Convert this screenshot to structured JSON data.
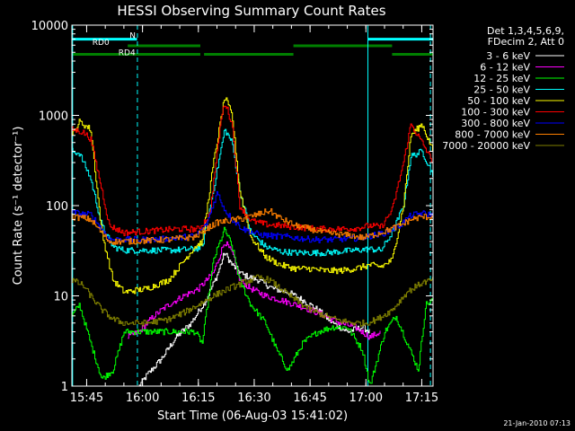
{
  "chart_data": {
    "type": "line",
    "title": "HESSI Observing Summary Count Rates",
    "xlabel": "Start Time (06-Aug-03 15:41:02)",
    "ylabel": "Count Rate (s⁻¹ detector⁻¹)",
    "footer": "21-Jan-2010 07:13",
    "yscale": "log",
    "ylim": [
      1,
      10000
    ],
    "xlim_minutes": [
      0,
      97
    ],
    "xtick_labels": [
      {
        "label": "15:45",
        "minute": 3.97
      },
      {
        "label": "16:00",
        "minute": 18.97
      },
      {
        "label": "16:15",
        "minute": 33.97
      },
      {
        "label": "16:30",
        "minute": 48.97
      },
      {
        "label": "16:45",
        "minute": 63.97
      },
      {
        "label": "17:00",
        "minute": 78.97
      },
      {
        "label": "17:15",
        "minute": 93.97
      }
    ],
    "ytick_labels": [
      {
        "label": "1",
        "value": 1
      },
      {
        "label": "10",
        "value": 10
      },
      {
        "label": "100",
        "value": 100
      },
      {
        "label": "1000",
        "value": 1000
      },
      {
        "label": "10000",
        "value": 10000
      }
    ],
    "legend_header": [
      "Det 1,3,4,5,6,9,",
      "FDecim 2, Att 0"
    ],
    "legend_placement": "right",
    "flags": [
      {
        "label": "N",
        "color": "#00ffff",
        "y_value": 7000,
        "segments": [
          [
            0,
            17.5
          ],
          [
            79.5,
            97
          ]
        ]
      },
      {
        "label": "RD0",
        "color": "#008000",
        "y_value": 5900,
        "segments": [
          [
            15,
            34.5
          ],
          [
            59.5,
            86
          ]
        ]
      },
      {
        "label": "RD4",
        "color": "#008000",
        "y_value": 4750,
        "segments": [
          [
            0,
            34.5
          ],
          [
            35.5,
            59.5
          ],
          [
            86,
            97
          ]
        ]
      }
    ],
    "vlines": [
      {
        "color": "#00ffff",
        "style": "solid",
        "minute": 0.2
      },
      {
        "color": "#00ffff",
        "style": "dashed",
        "minute": 17.6
      },
      {
        "color": "#00ffff",
        "style": "solid",
        "minute": 79.5
      },
      {
        "color": "#00ffff",
        "style": "dashed",
        "minute": 96.3
      }
    ],
    "series": [
      {
        "name": "3 - 6 keV",
        "color": "#ffffff",
        "points": [
          [
            18,
            1
          ],
          [
            20,
            1.3
          ],
          [
            24,
            2
          ],
          [
            28,
            3.5
          ],
          [
            32,
            5
          ],
          [
            36,
            9
          ],
          [
            39,
            17
          ],
          [
            41,
            30
          ],
          [
            43,
            22
          ],
          [
            46,
            17
          ],
          [
            50,
            15
          ],
          [
            54,
            12
          ],
          [
            58,
            11
          ],
          [
            62,
            9
          ],
          [
            66,
            7
          ],
          [
            70,
            5
          ],
          [
            74,
            4
          ],
          [
            78,
            4.5
          ],
          [
            80,
            4
          ]
        ]
      },
      {
        "name": "6 - 12 keV",
        "color": "#ff00ff",
        "points": [
          [
            15,
            3.5
          ],
          [
            18,
            4
          ],
          [
            22,
            6
          ],
          [
            26,
            8
          ],
          [
            30,
            10
          ],
          [
            34,
            12
          ],
          [
            38,
            18
          ],
          [
            41,
            40
          ],
          [
            43,
            30
          ],
          [
            45,
            15
          ],
          [
            48,
            12
          ],
          [
            52,
            10
          ],
          [
            56,
            9
          ],
          [
            60,
            8
          ],
          [
            64,
            7
          ],
          [
            68,
            6
          ],
          [
            72,
            5
          ],
          [
            76,
            4.5
          ],
          [
            80,
            3.5
          ],
          [
            83,
            4
          ]
        ]
      },
      {
        "name": "12 - 25 keV",
        "color": "#00ff00",
        "points": [
          [
            0,
            6
          ],
          [
            2,
            8
          ],
          [
            5,
            3
          ],
          [
            8,
            1.2
          ],
          [
            11,
            1.5
          ],
          [
            14,
            4
          ],
          [
            20,
            4
          ],
          [
            23,
            4
          ],
          [
            28,
            4
          ],
          [
            33,
            4
          ],
          [
            35,
            3
          ],
          [
            38,
            25
          ],
          [
            41,
            55
          ],
          [
            43,
            35
          ],
          [
            45,
            15
          ],
          [
            48,
            8
          ],
          [
            52,
            5
          ],
          [
            55,
            2.5
          ],
          [
            58,
            1.5
          ],
          [
            62,
            3
          ],
          [
            66,
            4
          ],
          [
            70,
            4.5
          ],
          [
            74,
            4.5
          ],
          [
            78,
            2.5
          ],
          [
            80,
            1
          ],
          [
            84,
            4
          ],
          [
            87,
            6
          ],
          [
            90,
            3
          ],
          [
            93,
            1.5
          ],
          [
            95,
            8
          ],
          [
            97,
            9
          ]
        ]
      },
      {
        "name": "25 - 50 keV",
        "color": "#00ffff",
        "points": [
          [
            0,
            400
          ],
          [
            2,
            380
          ],
          [
            5,
            200
          ],
          [
            8,
            60
          ],
          [
            11,
            35
          ],
          [
            14,
            32
          ],
          [
            20,
            32
          ],
          [
            26,
            32
          ],
          [
            33,
            33
          ],
          [
            35,
            35
          ],
          [
            38,
            150
          ],
          [
            41,
            700
          ],
          [
            43,
            500
          ],
          [
            45,
            150
          ],
          [
            48,
            50
          ],
          [
            52,
            35
          ],
          [
            56,
            31
          ],
          [
            60,
            30
          ],
          [
            64,
            30
          ],
          [
            68,
            30
          ],
          [
            72,
            31
          ],
          [
            76,
            32
          ],
          [
            80,
            33
          ],
          [
            83,
            32
          ],
          [
            86,
            50
          ],
          [
            89,
            100
          ],
          [
            91,
            350
          ],
          [
            94,
            400
          ],
          [
            97,
            220
          ]
        ]
      },
      {
        "name": "50 - 100 keV",
        "color": "#ffff00",
        "points": [
          [
            0,
            600
          ],
          [
            2,
            850
          ],
          [
            5,
            700
          ],
          [
            8,
            50
          ],
          [
            11,
            15
          ],
          [
            14,
            11
          ],
          [
            20,
            12
          ],
          [
            26,
            15
          ],
          [
            33,
            35
          ],
          [
            35,
            40
          ],
          [
            38,
            300
          ],
          [
            41,
            1600
          ],
          [
            43,
            1000
          ],
          [
            45,
            150
          ],
          [
            48,
            45
          ],
          [
            52,
            27
          ],
          [
            56,
            22
          ],
          [
            60,
            20
          ],
          [
            64,
            20
          ],
          [
            68,
            19
          ],
          [
            72,
            19
          ],
          [
            76,
            20
          ],
          [
            80,
            22
          ],
          [
            83,
            21
          ],
          [
            86,
            25
          ],
          [
            89,
            100
          ],
          [
            91,
            600
          ],
          [
            94,
            800
          ],
          [
            97,
            400
          ]
        ]
      },
      {
        "name": "100 - 300 keV",
        "color": "#ff0000",
        "points": [
          [
            0,
            700
          ],
          [
            3,
            650
          ],
          [
            5,
            550
          ],
          [
            8,
            150
          ],
          [
            10,
            60
          ],
          [
            14,
            50
          ],
          [
            20,
            52
          ],
          [
            28,
            55
          ],
          [
            34,
            55
          ],
          [
            37,
            80
          ],
          [
            40,
            900
          ],
          [
            41,
            1400
          ],
          [
            43,
            800
          ],
          [
            45,
            100
          ],
          [
            48,
            68
          ],
          [
            52,
            62
          ],
          [
            56,
            60
          ],
          [
            60,
            58
          ],
          [
            64,
            56
          ],
          [
            68,
            55
          ],
          [
            72,
            55
          ],
          [
            76,
            56
          ],
          [
            80,
            60
          ],
          [
            83,
            58
          ],
          [
            86,
            90
          ],
          [
            89,
            300
          ],
          [
            91,
            800
          ],
          [
            94,
            500
          ],
          [
            97,
            300
          ]
        ]
      },
      {
        "name": "300 - 800 keV",
        "color": "#0000ff",
        "points": [
          [
            0,
            85
          ],
          [
            3,
            80
          ],
          [
            5,
            80
          ],
          [
            8,
            55
          ],
          [
            10,
            42
          ],
          [
            14,
            42
          ],
          [
            20,
            42
          ],
          [
            26,
            43
          ],
          [
            33,
            46
          ],
          [
            36,
            60
          ],
          [
            39,
            140
          ],
          [
            41,
            90
          ],
          [
            43,
            70
          ],
          [
            46,
            55
          ],
          [
            50,
            48
          ],
          [
            54,
            46
          ],
          [
            58,
            45
          ],
          [
            62,
            43
          ],
          [
            66,
            42
          ],
          [
            70,
            42
          ],
          [
            74,
            43
          ],
          [
            78,
            44
          ],
          [
            80,
            46
          ],
          [
            84,
            50
          ],
          [
            88,
            60
          ],
          [
            91,
            78
          ],
          [
            94,
            82
          ],
          [
            97,
            78
          ]
        ]
      },
      {
        "name": "800 - 7000 keV",
        "color": "#ff8000",
        "points": [
          [
            0,
            75
          ],
          [
            3,
            73
          ],
          [
            5,
            70
          ],
          [
            8,
            50
          ],
          [
            10,
            40
          ],
          [
            14,
            40
          ],
          [
            20,
            41
          ],
          [
            26,
            42
          ],
          [
            33,
            45
          ],
          [
            36,
            55
          ],
          [
            39,
            65
          ],
          [
            42,
            68
          ],
          [
            46,
            72
          ],
          [
            50,
            80
          ],
          [
            53,
            88
          ],
          [
            56,
            72
          ],
          [
            60,
            60
          ],
          [
            64,
            55
          ],
          [
            68,
            50
          ],
          [
            72,
            48
          ],
          [
            76,
            46
          ],
          [
            78,
            44
          ],
          [
            80,
            46
          ],
          [
            84,
            52
          ],
          [
            88,
            60
          ],
          [
            91,
            70
          ],
          [
            94,
            75
          ],
          [
            97,
            75
          ]
        ]
      },
      {
        "name": "7000 - 20000 keV",
        "color": "#808000",
        "points": [
          [
            0,
            15
          ],
          [
            3,
            13
          ],
          [
            5,
            10
          ],
          [
            8,
            7
          ],
          [
            11,
            5.5
          ],
          [
            14,
            5
          ],
          [
            20,
            5
          ],
          [
            26,
            5.5
          ],
          [
            30,
            6.5
          ],
          [
            34,
            8
          ],
          [
            38,
            10
          ],
          [
            42,
            12
          ],
          [
            46,
            14
          ],
          [
            50,
            16
          ],
          [
            53,
            15
          ],
          [
            56,
            12
          ],
          [
            60,
            9
          ],
          [
            64,
            7
          ],
          [
            68,
            6
          ],
          [
            72,
            5.3
          ],
          [
            76,
            5
          ],
          [
            79,
            5
          ],
          [
            82,
            5.5
          ],
          [
            86,
            7
          ],
          [
            90,
            11
          ],
          [
            94,
            14
          ],
          [
            97,
            15
          ]
        ]
      }
    ]
  }
}
